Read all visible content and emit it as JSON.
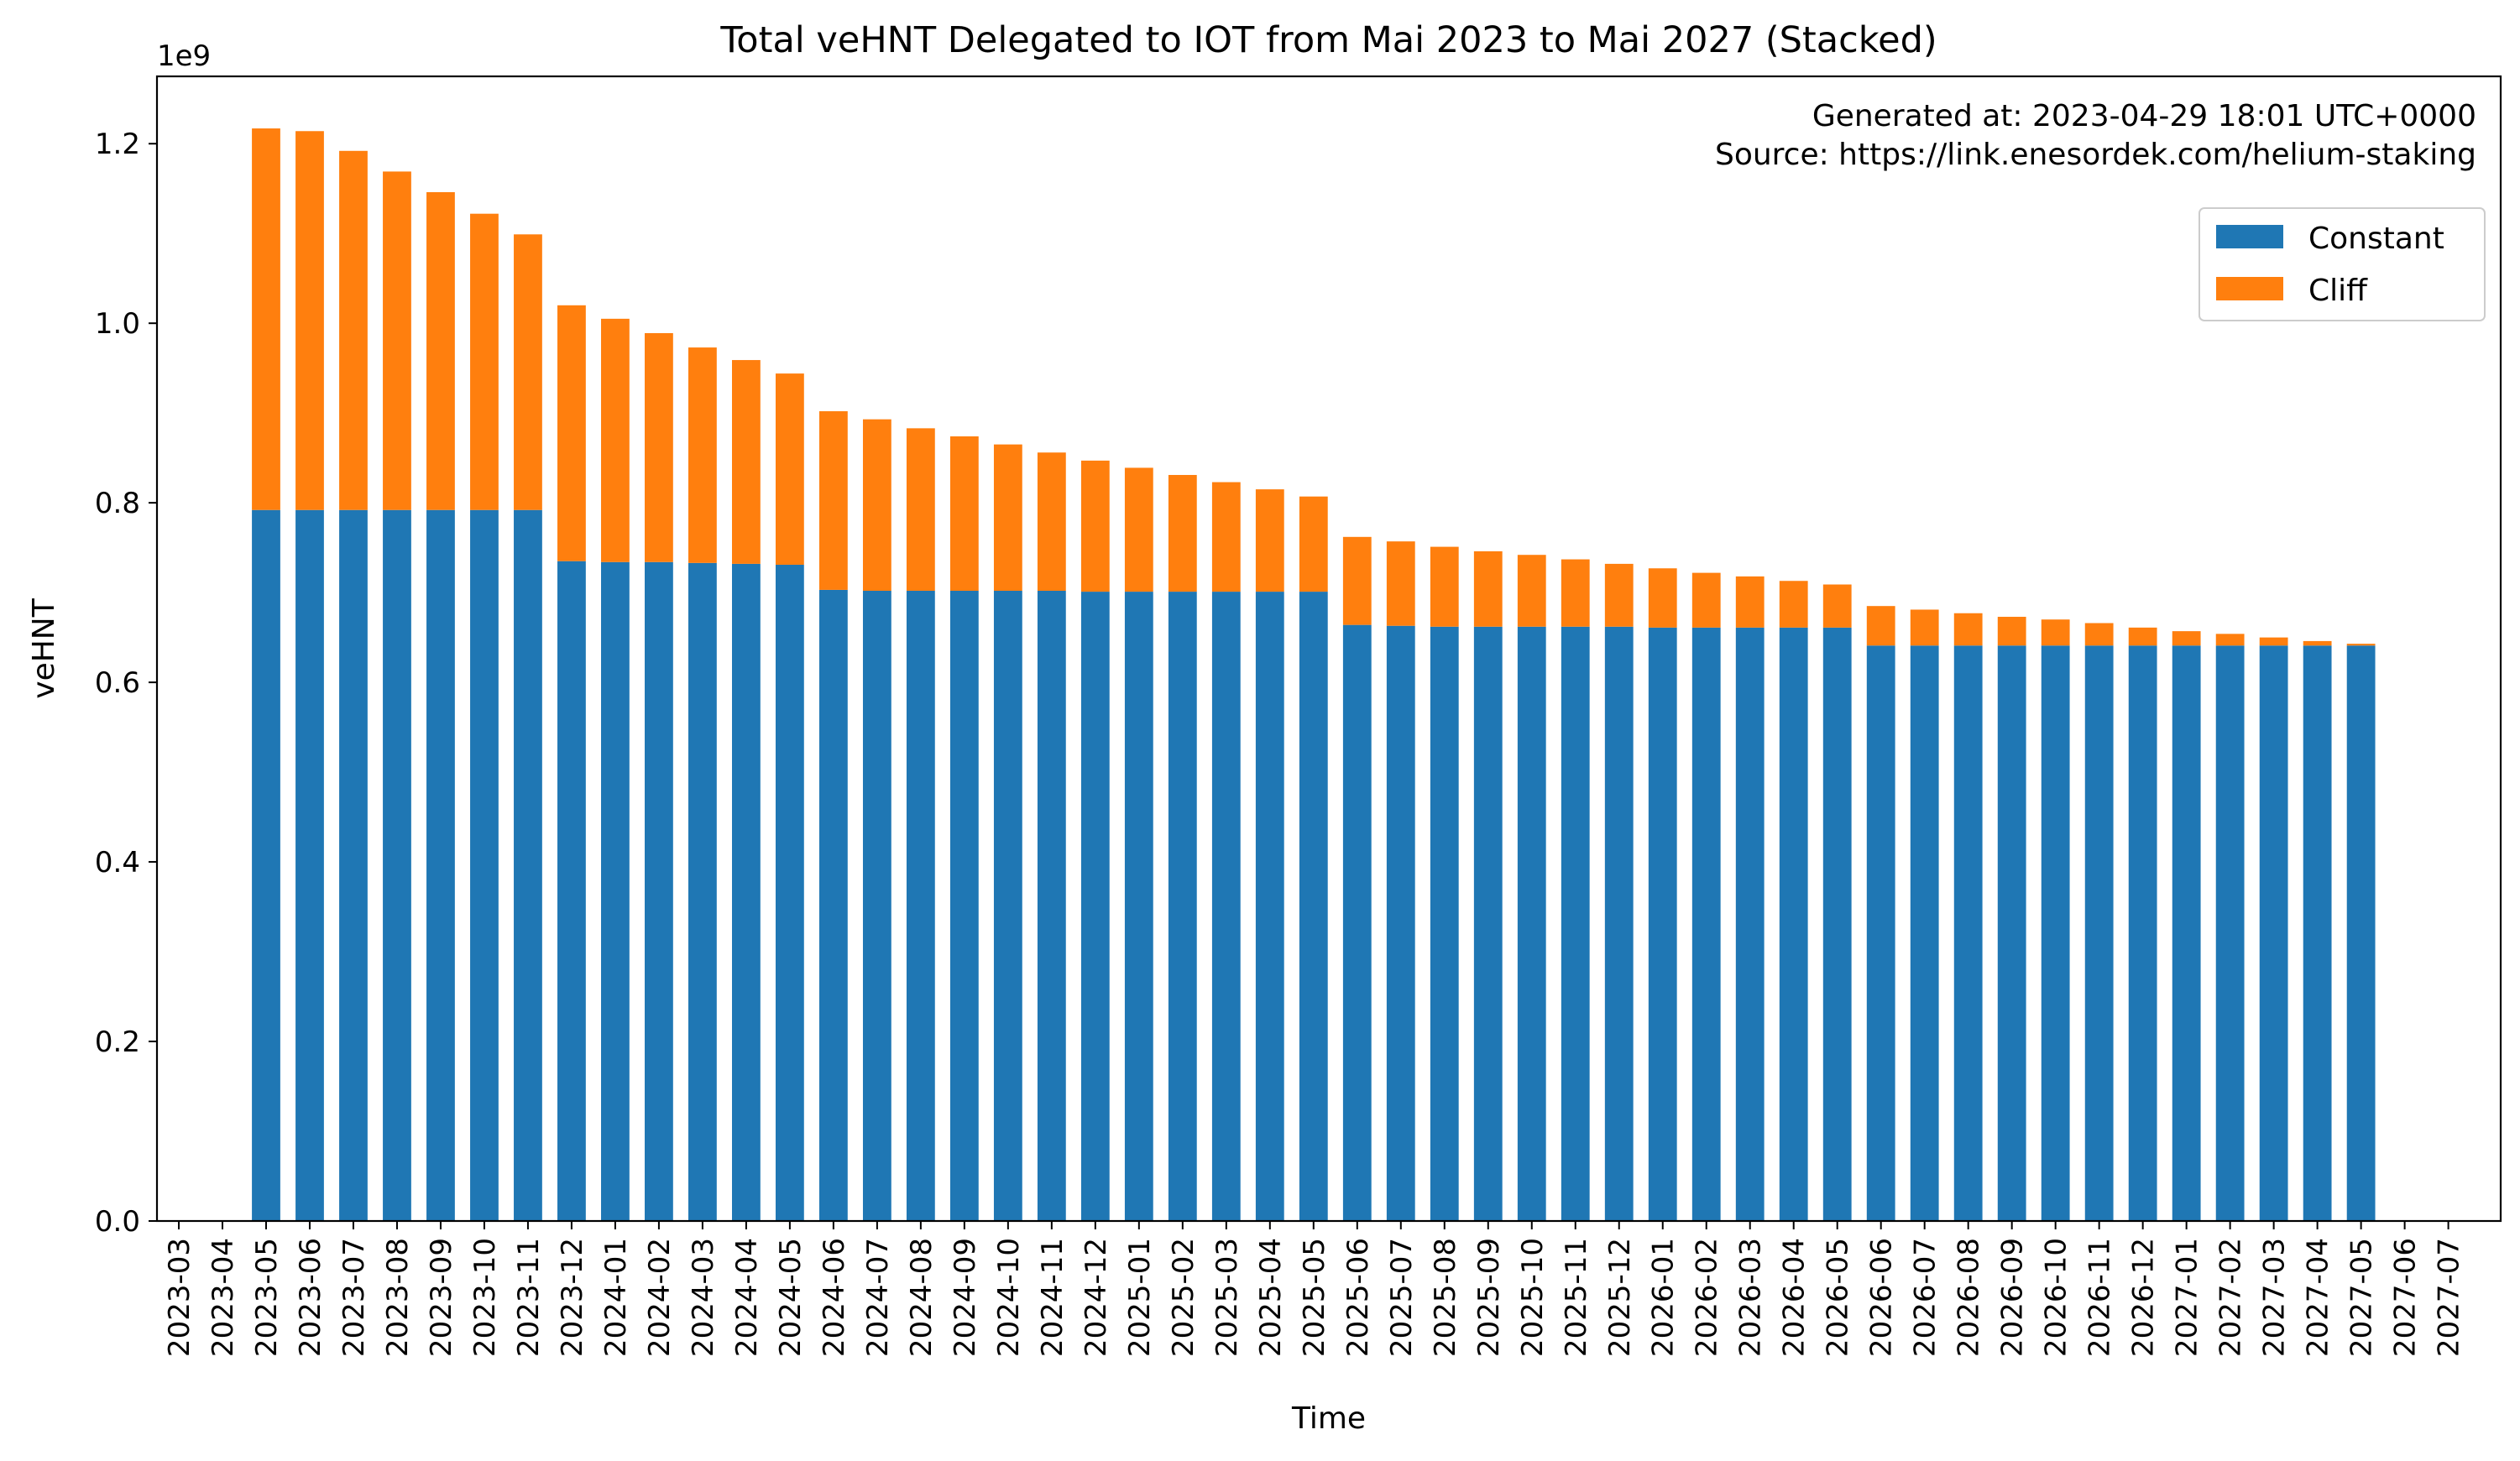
{
  "chart_data": {
    "type": "bar",
    "stacked": true,
    "title": "Total veHNT Delegated to IOT from Mai 2023 to Mai 2027 (Stacked)",
    "xlabel": "Time",
    "ylabel": "veHNT",
    "y_offset_label": "1e9",
    "y_scale_multiplier": 1000000000,
    "ylim": [
      0,
      1.275
    ],
    "yticks": [
      0.0,
      0.2,
      0.4,
      0.6,
      0.8,
      1.0,
      1.2
    ],
    "ytick_labels": [
      "0.0",
      "0.2",
      "0.4",
      "0.6",
      "0.8",
      "1.0",
      "1.2"
    ],
    "grid": false,
    "legend_position": "top-right",
    "annotations": [
      "Generated at: 2023-04-29 18:01 UTC+0000",
      "Source: https://link.enesordek.com/helium-staking"
    ],
    "categories": [
      "2023-03",
      "2023-04",
      "2023-05",
      "2023-06",
      "2023-07",
      "2023-08",
      "2023-09",
      "2023-10",
      "2023-11",
      "2023-12",
      "2024-01",
      "2024-02",
      "2024-03",
      "2024-04",
      "2024-05",
      "2024-06",
      "2024-07",
      "2024-08",
      "2024-09",
      "2024-10",
      "2024-11",
      "2024-12",
      "2025-01",
      "2025-02",
      "2025-03",
      "2025-04",
      "2025-05",
      "2025-06",
      "2025-07",
      "2025-08",
      "2025-09",
      "2025-10",
      "2025-11",
      "2025-12",
      "2026-01",
      "2026-02",
      "2026-03",
      "2026-04",
      "2026-05",
      "2026-06",
      "2026-07",
      "2026-08",
      "2026-09",
      "2026-10",
      "2026-11",
      "2026-12",
      "2027-01",
      "2027-02",
      "2027-03",
      "2027-04",
      "2027-05",
      "2027-06",
      "2027-07"
    ],
    "series": [
      {
        "name": "Constant",
        "color": "#1f77b4",
        "values": [
          null,
          null,
          0.792,
          0.792,
          0.792,
          0.792,
          0.792,
          0.792,
          0.792,
          0.735,
          0.734,
          0.734,
          0.733,
          0.732,
          0.731,
          0.703,
          0.702,
          0.702,
          0.702,
          0.702,
          0.702,
          0.701,
          0.701,
          0.701,
          0.701,
          0.701,
          0.701,
          0.664,
          0.663,
          0.662,
          0.662,
          0.662,
          0.662,
          0.662,
          0.661,
          0.661,
          0.661,
          0.661,
          0.661,
          0.641,
          0.641,
          0.641,
          0.641,
          0.641,
          0.641,
          0.641,
          0.641,
          0.641,
          0.641,
          0.641,
          0.641,
          null,
          null
        ]
      },
      {
        "name": "Cliff",
        "color": "#ff7f0e",
        "values": [
          null,
          null,
          0.425,
          0.422,
          0.4,
          0.377,
          0.354,
          0.33,
          0.307,
          0.285,
          0.271,
          0.255,
          0.24,
          0.227,
          0.213,
          0.199,
          0.191,
          0.181,
          0.172,
          0.163,
          0.154,
          0.146,
          0.138,
          0.13,
          0.122,
          0.114,
          0.106,
          0.098,
          0.094,
          0.089,
          0.084,
          0.08,
          0.075,
          0.07,
          0.066,
          0.061,
          0.057,
          0.052,
          0.048,
          0.044,
          0.04,
          0.036,
          0.032,
          0.029,
          0.025,
          0.02,
          0.016,
          0.013,
          0.009,
          0.005,
          0.002,
          null,
          null
        ]
      }
    ]
  }
}
